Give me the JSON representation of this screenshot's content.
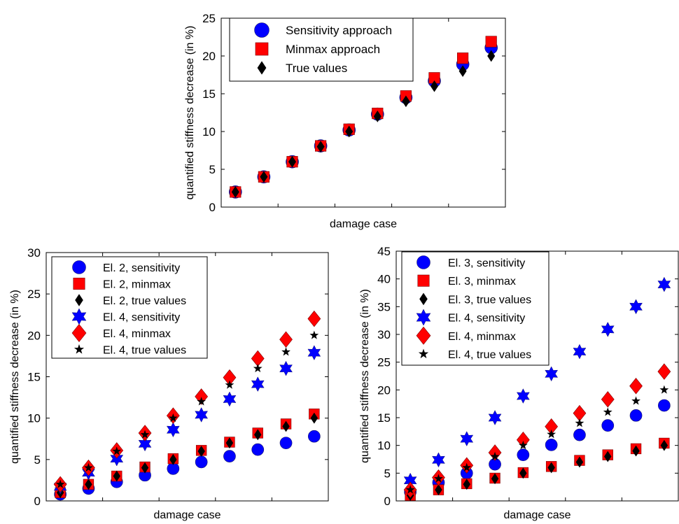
{
  "chart_data": [
    {
      "type": "scatter",
      "xlabel": "damage case",
      "ylabel": "quantified stiffness decrease (in %)",
      "ylim": [
        0,
        25
      ],
      "yticks": [
        0,
        5,
        10,
        15,
        20,
        25
      ],
      "x": [
        1,
        2,
        3,
        4,
        5,
        6,
        7,
        8,
        9,
        10
      ],
      "xlim": [
        0.5,
        10.5
      ],
      "grid": false,
      "legend_position": "top-left",
      "series": [
        {
          "name": "Sensitivity approach",
          "marker": "circle",
          "color": "#0000ff",
          "values": [
            2,
            4,
            6,
            8.1,
            10.2,
            12.3,
            14.5,
            16.7,
            18.9,
            21.1
          ]
        },
        {
          "name": "Minmax approach",
          "marker": "square",
          "color": "#ff0000",
          "values": [
            2,
            4,
            6,
            8.1,
            10.3,
            12.4,
            14.7,
            17.1,
            19.7,
            21.9
          ]
        },
        {
          "name": "True values",
          "marker": "diamond",
          "color": "#000000",
          "values": [
            2,
            4,
            6,
            8,
            10,
            12,
            14,
            16,
            18,
            20
          ]
        }
      ]
    },
    {
      "type": "scatter",
      "xlabel": "damage case",
      "ylabel": "quantified stiffness decrease (in %)",
      "ylim": [
        0,
        30
      ],
      "yticks": [
        0,
        5,
        10,
        15,
        20,
        25,
        30
      ],
      "x": [
        1,
        2,
        3,
        4,
        5,
        6,
        7,
        8,
        9,
        10
      ],
      "xlim": [
        0.5,
        10.5
      ],
      "grid": false,
      "legend_position": "top-left",
      "series": [
        {
          "name": "El. 2, sensitivity",
          "marker": "circle",
          "color": "#0000ff",
          "values": [
            0.8,
            1.5,
            2.3,
            3.1,
            3.9,
            4.7,
            5.4,
            6.2,
            7.0,
            7.8
          ]
        },
        {
          "name": "El. 2, minmax",
          "marker": "square",
          "color": "#ff0000",
          "values": [
            1,
            2,
            3,
            4.1,
            5.1,
            6.1,
            7.1,
            8.2,
            9.3,
            10.5
          ]
        },
        {
          "name": "El. 2, true values",
          "marker": "diamond",
          "color": "#000000",
          "values": [
            1,
            2,
            3,
            4,
            5,
            6,
            7,
            8,
            9,
            10
          ]
        },
        {
          "name": "El. 4, sensitivity",
          "marker": "hexagram",
          "color": "#0000ff",
          "values": [
            1.7,
            3.4,
            5.1,
            6.9,
            8.6,
            10.4,
            12.3,
            14.1,
            16.0,
            17.9
          ]
        },
        {
          "name": "El. 4, minmax",
          "marker": "bigdiamond",
          "color": "#ff0000",
          "values": [
            2,
            4,
            6.1,
            8.2,
            10.3,
            12.6,
            14.9,
            17.2,
            19.5,
            22.0
          ]
        },
        {
          "name": "El. 4, true values",
          "marker": "star",
          "color": "#000000",
          "values": [
            2,
            4,
            6,
            8,
            10,
            12,
            14,
            16,
            18,
            20
          ]
        }
      ]
    },
    {
      "type": "scatter",
      "xlabel": "damage case",
      "ylabel": "quantified stiffness decrease (in %)",
      "ylim": [
        0,
        45
      ],
      "yticks": [
        0,
        5,
        10,
        15,
        20,
        25,
        30,
        35,
        40,
        45
      ],
      "x": [
        1,
        2,
        3,
        4,
        5,
        6,
        7,
        8,
        9,
        10
      ],
      "xlim": [
        0.5,
        10.5
      ],
      "grid": false,
      "legend_position": "top-left",
      "series": [
        {
          "name": "El. 3, sensitivity",
          "marker": "circle",
          "color": "#0000ff",
          "values": [
            1.6,
            3.3,
            5.0,
            6.6,
            8.3,
            10.1,
            11.9,
            13.6,
            15.4,
            17.2
          ]
        },
        {
          "name": "El. 3, minmax",
          "marker": "square",
          "color": "#ff0000",
          "values": [
            1,
            2,
            3.1,
            4.1,
            5.1,
            6.2,
            7.3,
            8.3,
            9.4,
            10.4
          ]
        },
        {
          "name": "El. 3, true values",
          "marker": "diamond",
          "color": "#000000",
          "values": [
            1,
            2,
            3,
            4,
            5,
            6,
            7,
            8,
            9,
            10
          ]
        },
        {
          "name": "El. 4, sensitivity",
          "marker": "hexagram",
          "color": "#0000ff",
          "values": [
            3.7,
            7.4,
            11.2,
            15.0,
            18.9,
            22.9,
            26.9,
            30.9,
            35.0,
            39.0
          ]
        },
        {
          "name": "El. 4, minmax",
          "marker": "bigdiamond",
          "color": "#ff0000",
          "values": [
            2,
            4.2,
            6.4,
            8.7,
            11.0,
            13.4,
            15.8,
            18.3,
            20.7,
            23.3
          ]
        },
        {
          "name": "El. 4, true values",
          "marker": "star",
          "color": "#000000",
          "values": [
            2,
            4,
            6,
            8,
            10,
            12,
            14,
            16,
            18,
            20
          ]
        }
      ]
    }
  ]
}
